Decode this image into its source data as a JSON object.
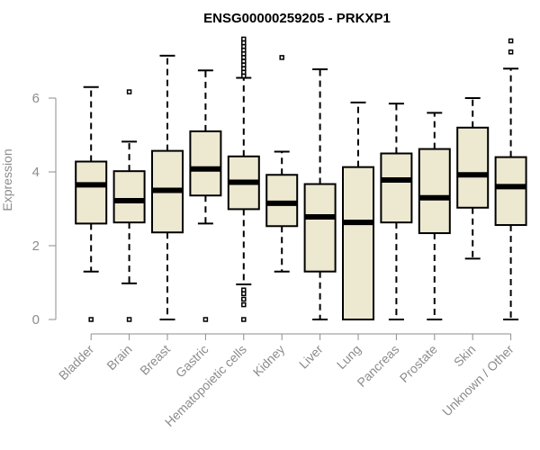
{
  "chart_data": {
    "type": "box",
    "title": "ENSG00000259205 - PRKXP1",
    "xlabel": "",
    "ylabel": "Expression",
    "ylim": [
      0,
      7.6
    ],
    "yticks": [
      0,
      2,
      4,
      6
    ],
    "grid": false,
    "legend": "none",
    "colors": {
      "box_fill": "#ede8d0",
      "box_stroke": "#000000",
      "median": "#000000",
      "axis": "#8c8c8c"
    },
    "categories": [
      "Bladder",
      "Brain",
      "Breast",
      "Gastric",
      "Hematopoietic cells",
      "Kidney",
      "Liver",
      "Lung",
      "Pancreas",
      "Prostate",
      "Skin",
      "Unknown / Other"
    ],
    "boxes": [
      {
        "category": "Bladder",
        "whisker_low": 1.3,
        "q1": 2.6,
        "median": 3.65,
        "q3": 4.28,
        "whisker_high": 6.3,
        "outliers": [
          0
        ]
      },
      {
        "category": "Brain",
        "whisker_low": 0.98,
        "q1": 2.63,
        "median": 3.22,
        "q3": 4.02,
        "whisker_high": 4.82,
        "outliers": [
          0,
          6.17
        ]
      },
      {
        "category": "Breast",
        "whisker_low": 0,
        "q1": 2.36,
        "median": 3.5,
        "q3": 4.57,
        "whisker_high": 7.15,
        "outliers": []
      },
      {
        "category": "Gastric",
        "whisker_low": 2.6,
        "q1": 3.36,
        "median": 4.08,
        "q3": 5.1,
        "whisker_high": 6.75,
        "outliers": [
          0
        ]
      },
      {
        "category": "Hematopoietic cells",
        "whisker_low": 0.95,
        "q1": 2.99,
        "median": 3.72,
        "q3": 4.42,
        "whisker_high": 6.55,
        "outliers": [
          0,
          0.4,
          0.55,
          0.7,
          0.8,
          6.6,
          6.7,
          6.8,
          6.9,
          7.0,
          7.1,
          7.2,
          7.3,
          7.4,
          7.5,
          7.6
        ]
      },
      {
        "category": "Kidney",
        "whisker_low": 1.3,
        "q1": 2.53,
        "median": 3.15,
        "q3": 3.92,
        "whisker_high": 4.55,
        "outliers": [
          7.1
        ]
      },
      {
        "category": "Liver",
        "whisker_low": 0,
        "q1": 1.3,
        "median": 2.78,
        "q3": 3.67,
        "whisker_high": 6.78,
        "outliers": []
      },
      {
        "category": "Lung",
        "whisker_low": 0,
        "q1": 0,
        "median": 2.63,
        "q3": 4.13,
        "whisker_high": 5.88,
        "outliers": []
      },
      {
        "category": "Pancreas",
        "whisker_low": 0,
        "q1": 2.63,
        "median": 3.78,
        "q3": 4.5,
        "whisker_high": 5.85,
        "outliers": []
      },
      {
        "category": "Prostate",
        "whisker_low": 0,
        "q1": 2.34,
        "median": 3.3,
        "q3": 4.62,
        "whisker_high": 5.6,
        "outliers": []
      },
      {
        "category": "Skin",
        "whisker_low": 1.65,
        "q1": 3.03,
        "median": 3.92,
        "q3": 5.2,
        "whisker_high": 6.0,
        "outliers": []
      },
      {
        "category": "Unknown / Other",
        "whisker_low": 0,
        "q1": 2.56,
        "median": 3.6,
        "q3": 4.4,
        "whisker_high": 6.8,
        "outliers": [
          7.25,
          7.55
        ]
      }
    ]
  }
}
